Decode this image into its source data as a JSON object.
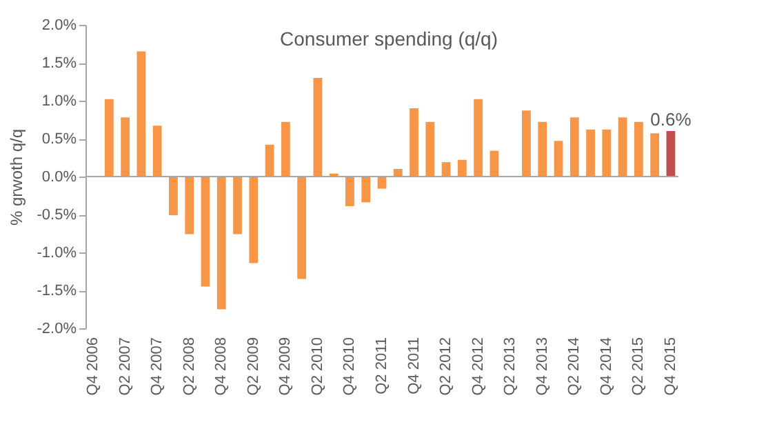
{
  "chart_data": {
    "type": "bar",
    "title": "Consumer spending (q/q)",
    "ylabel": "% grwoth q/q",
    "categories": [
      "Q4 2006",
      null,
      "Q2 2007",
      null,
      "Q4 2007",
      null,
      "Q2 2008",
      null,
      "Q4 2008",
      null,
      "Q2 2009",
      null,
      "Q4 2009",
      null,
      "Q2 2010",
      null,
      "Q4 2010",
      null,
      "Q2 2011",
      null,
      "Q4 2011",
      null,
      "Q2 2012",
      null,
      "Q4 2012",
      null,
      "Q2 2013",
      null,
      "Q4 2013",
      null,
      "Q2 2014",
      null,
      "Q4 2014",
      null,
      "Q2 2015",
      null,
      "Q4 2015"
    ],
    "values": [
      0.0,
      1.02,
      0.78,
      1.65,
      0.67,
      -0.51,
      -0.76,
      -1.45,
      -1.75,
      -0.76,
      -1.14,
      0.42,
      0.72,
      -1.35,
      1.3,
      0.04,
      -0.39,
      -0.34,
      -0.16,
      0.1,
      0.9,
      0.72,
      0.19,
      0.22,
      1.02,
      0.34,
      0.0,
      0.87,
      0.72,
      0.47,
      0.78,
      0.62,
      0.62,
      0.78,
      0.72,
      0.57,
      0.6
    ],
    "colors": [
      "#f79646",
      "#f79646",
      "#f79646",
      "#f79646",
      "#f79646",
      "#f79646",
      "#f79646",
      "#f79646",
      "#f79646",
      "#f79646",
      "#f79646",
      "#f79646",
      "#f79646",
      "#f79646",
      "#f79646",
      "#f79646",
      "#f79646",
      "#f79646",
      "#f79646",
      "#f79646",
      "#f79646",
      "#f79646",
      "#f79646",
      "#f79646",
      "#f79646",
      "#f79646",
      "#f79646",
      "#f79646",
      "#f79646",
      "#f79646",
      "#f79646",
      "#f79646",
      "#f79646",
      "#f79646",
      "#f79646",
      "#f79646",
      "#c0504d"
    ],
    "value_labels": [
      null,
      null,
      null,
      null,
      null,
      null,
      null,
      null,
      null,
      null,
      null,
      null,
      null,
      null,
      null,
      null,
      null,
      null,
      null,
      null,
      null,
      null,
      null,
      null,
      null,
      null,
      null,
      null,
      null,
      null,
      null,
      null,
      null,
      null,
      null,
      null,
      "0.6%"
    ],
    "ylim": [
      -2.0,
      2.0
    ],
    "yticks": [
      {
        "value": -2.0,
        "label": "-2.0%"
      },
      {
        "value": -1.5,
        "label": "-1.5%"
      },
      {
        "value": -1.0,
        "label": "-1.0%"
      },
      {
        "value": -0.5,
        "label": "-0.5%"
      },
      {
        "value": 0.0,
        "label": "0.0%"
      },
      {
        "value": 0.5,
        "label": "0.5%"
      },
      {
        "value": 1.0,
        "label": "1.0%"
      },
      {
        "value": 1.5,
        "label": "1.5%"
      },
      {
        "value": 2.0,
        "label": "2.0%"
      }
    ],
    "ref_lines": [
      {
        "axis": "y",
        "value": 0,
        "color": "#a6a6a6"
      }
    ],
    "grid": false
  }
}
